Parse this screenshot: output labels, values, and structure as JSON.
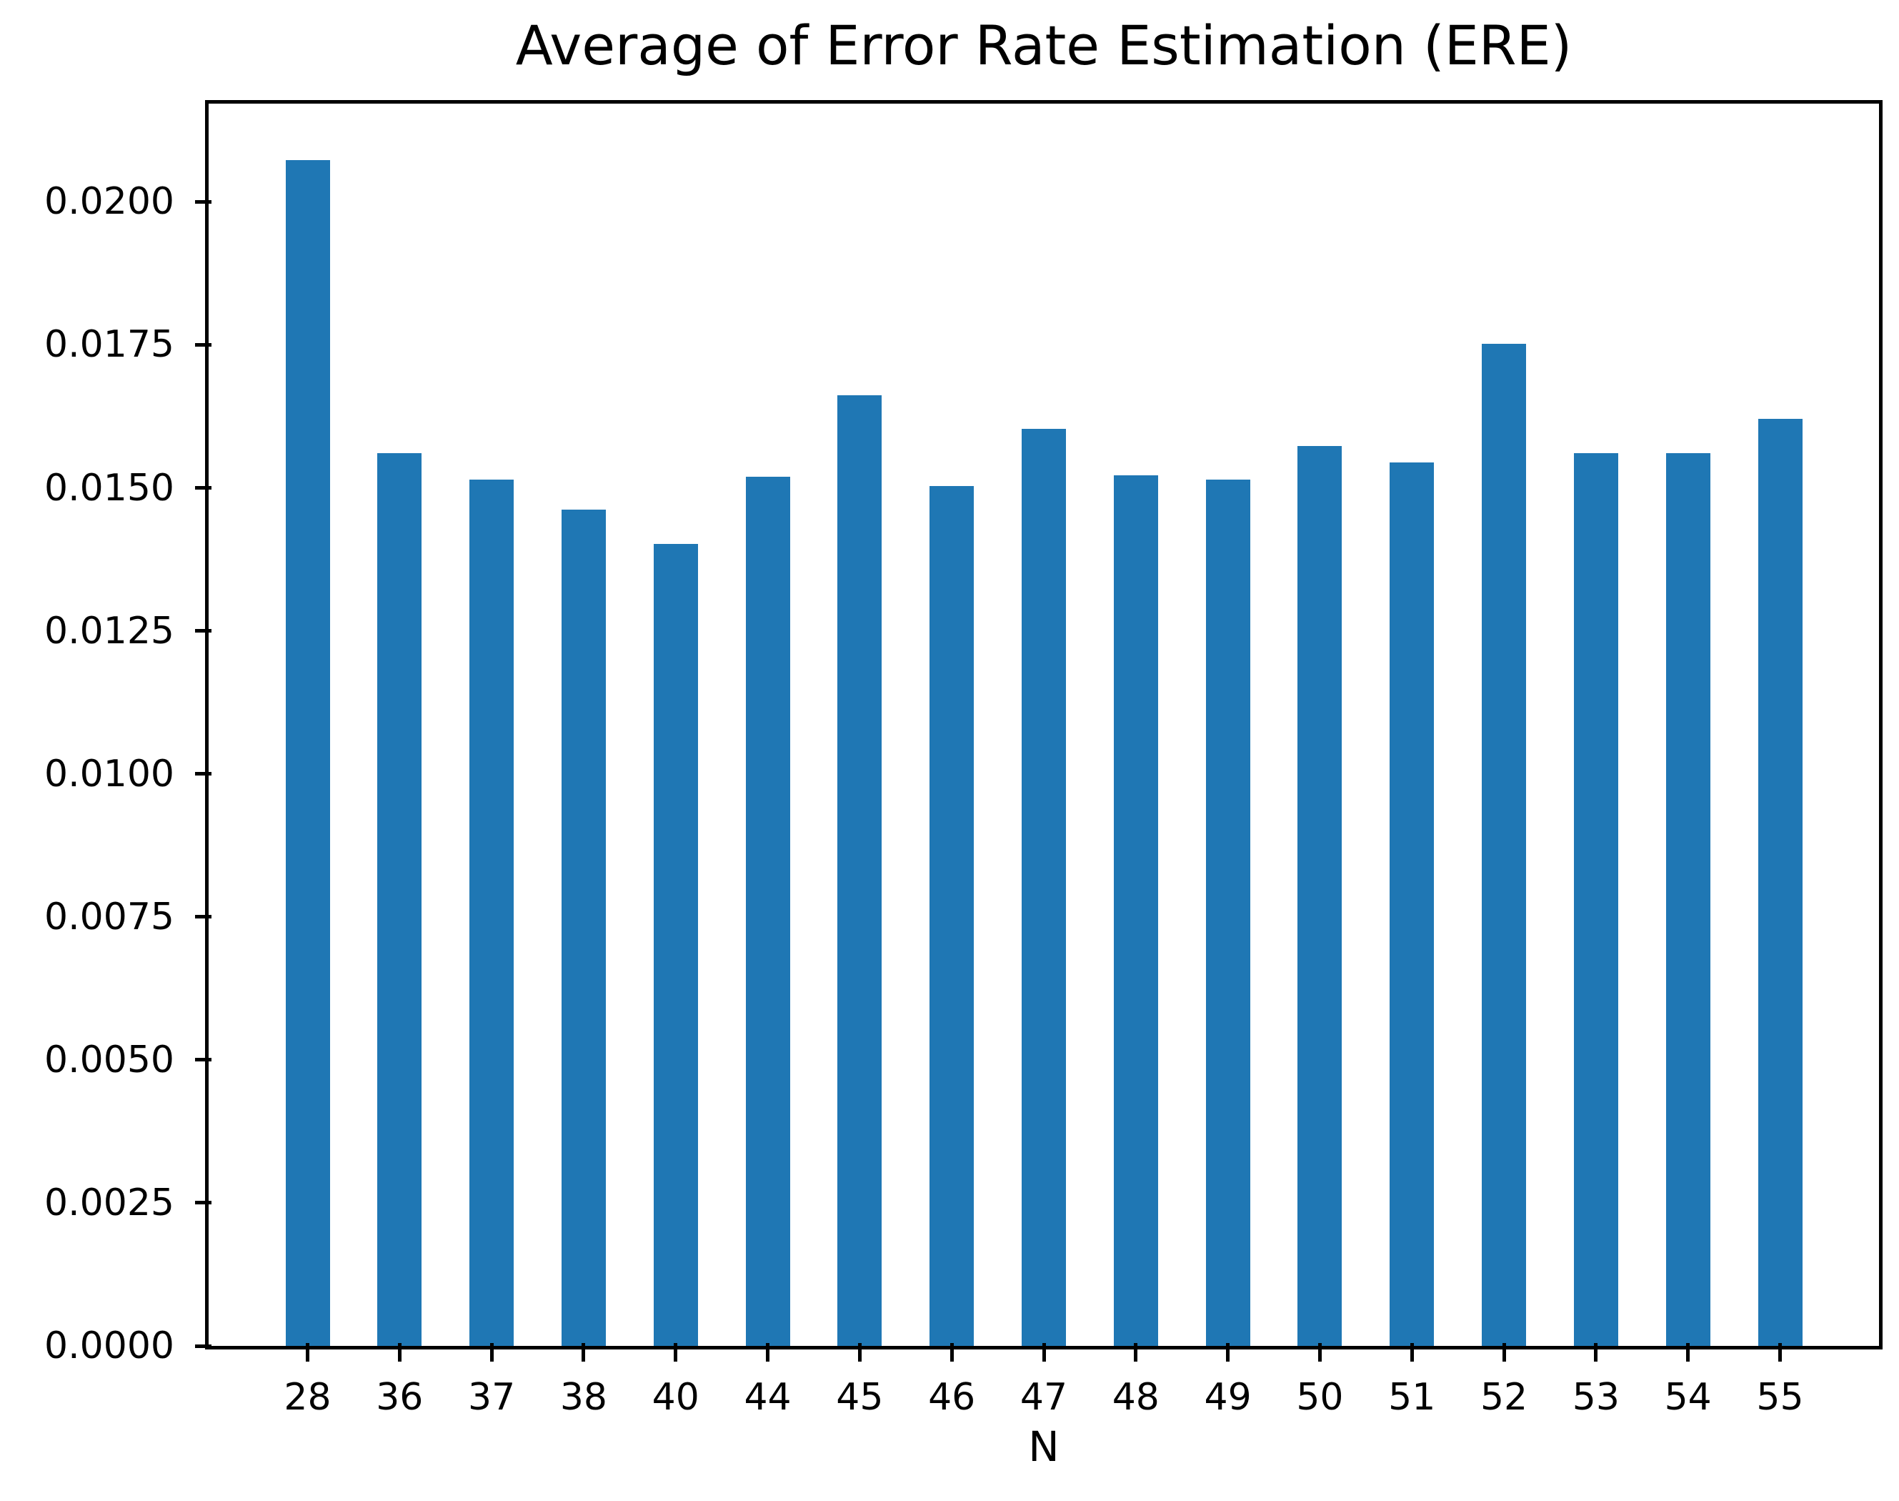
{
  "chart_data": {
    "type": "bar",
    "title": "Average of Error Rate Estimation (ERE)",
    "xlabel": "N",
    "ylabel": "",
    "categories": [
      "28",
      "36",
      "37",
      "38",
      "40",
      "44",
      "45",
      "46",
      "47",
      "48",
      "49",
      "50",
      "51",
      "52",
      "53",
      "54",
      "55"
    ],
    "values": [
      0.02073,
      0.0156,
      0.01515,
      0.01462,
      0.01402,
      0.0152,
      0.01662,
      0.01503,
      0.01603,
      0.01522,
      0.01515,
      0.01573,
      0.01545,
      0.01752,
      0.0156,
      0.0156,
      0.01621
    ],
    "bar_color": "#1f77b4",
    "axis_color": "#000000",
    "text_color": "#000000",
    "background_color": "#ffffff",
    "ylim": [
      0.0,
      0.021716
    ],
    "yticks": [
      0.0,
      0.0025,
      0.005,
      0.0075,
      0.01,
      0.0125,
      0.015,
      0.0175,
      0.02
    ],
    "ytick_labels": [
      "0.0000",
      "0.0025",
      "0.0050",
      "0.0075",
      "0.0100",
      "0.0125",
      "0.0150",
      "0.0175",
      "0.0200"
    ],
    "grid": false,
    "legend": null
  }
}
